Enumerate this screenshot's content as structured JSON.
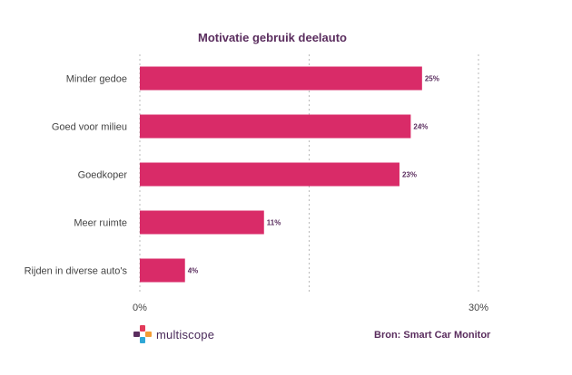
{
  "chart_data": {
    "type": "bar",
    "orientation": "horizontal",
    "title": "Motivatie gebruik deelauto",
    "categories": [
      "Minder gedoe",
      "Goed voor milieu",
      "Goedkoper",
      "Meer ruimte",
      "Rijden in diverse auto's"
    ],
    "values": [
      25,
      24,
      23,
      11,
      4
    ],
    "value_labels": [
      "25%",
      "24%",
      "23%",
      "11%",
      "4%"
    ],
    "xlim": [
      0,
      30
    ],
    "x_tick_labels": [
      "0%",
      "30%"
    ],
    "grid": true,
    "bar_color": "#d92b68"
  },
  "source": "Bron: Smart Car Monitor",
  "brand": {
    "name": "multiscope",
    "colors": [
      "#e23a5a",
      "#f39c34",
      "#2fa7d6",
      "#5a2d5e"
    ]
  }
}
